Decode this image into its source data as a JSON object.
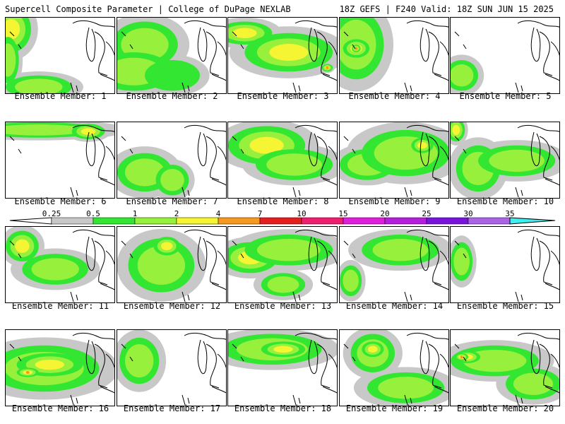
{
  "header": {
    "left_title": "Supercell Composite Parameter | College of DuPage NEXLAB",
    "right_title": "18Z GEFS | F240 Valid: 18Z SUN JUN 15 2025"
  },
  "legend": {
    "ticks": [
      "0.25",
      "0.5",
      "1",
      "2",
      "4",
      "7",
      "10",
      "15",
      "20",
      "25",
      "30",
      "35"
    ],
    "colors": [
      "#c8c8c8",
      "#32e632",
      "#96f03c",
      "#f5f534",
      "#f59a1e",
      "#e61e1e",
      "#f01e6e",
      "#e11edc",
      "#b41edc",
      "#7814dc",
      "#aa64e6",
      "#3cf0f0"
    ]
  },
  "members": [
    {
      "label": "Ensemble Member: 1",
      "blobs": [
        [
          0.05,
          0.15,
          0.18,
          0.3,
          4
        ],
        [
          0.02,
          0.55,
          0.1,
          0.3,
          2
        ],
        [
          0.3,
          0.9,
          0.3,
          0.15,
          2
        ]
      ]
    },
    {
      "label": "Ensemble Member: 2",
      "blobs": [
        [
          0.25,
          0.35,
          0.3,
          0.3,
          2
        ],
        [
          0.15,
          0.7,
          0.35,
          0.25,
          2
        ],
        [
          0.5,
          0.75,
          0.25,
          0.2,
          1
        ]
      ]
    },
    {
      "label": "Ensemble Member: 3",
      "blobs": [
        [
          0.15,
          0.2,
          0.25,
          0.15,
          4
        ],
        [
          0.55,
          0.45,
          0.4,
          0.25,
          4
        ],
        [
          0.9,
          0.65,
          0.05,
          0.05,
          7
        ]
      ]
    },
    {
      "label": "Ensemble Member: 4",
      "blobs": [
        [
          0.15,
          0.35,
          0.25,
          0.45,
          2
        ],
        [
          0.15,
          0.4,
          0.12,
          0.12,
          4
        ],
        [
          0.15,
          0.4,
          0.04,
          0.05,
          10
        ]
      ]
    },
    {
      "label": "Ensemble Member: 5",
      "blobs": [
        [
          0.1,
          0.75,
          0.15,
          0.2,
          2
        ]
      ]
    },
    {
      "label": "Ensemble Member: 6",
      "blobs": [
        [
          0.3,
          0.1,
          0.6,
          0.1,
          2
        ],
        [
          0.75,
          0.12,
          0.15,
          0.1,
          4
        ]
      ]
    },
    {
      "label": "Ensemble Member: 7",
      "blobs": [
        [
          0.25,
          0.65,
          0.25,
          0.25,
          2
        ],
        [
          0.5,
          0.75,
          0.15,
          0.2,
          2
        ]
      ]
    },
    {
      "label": "Ensemble Member: 8",
      "blobs": [
        [
          0.35,
          0.3,
          0.35,
          0.25,
          4
        ],
        [
          0.6,
          0.55,
          0.35,
          0.2,
          2
        ]
      ]
    },
    {
      "label": "Ensemble Member: 9",
      "blobs": [
        [
          0.25,
          0.55,
          0.25,
          0.2,
          2
        ],
        [
          0.6,
          0.4,
          0.4,
          0.3,
          2
        ],
        [
          0.75,
          0.3,
          0.1,
          0.1,
          4
        ]
      ]
    },
    {
      "label": "Ensemble Member: 10",
      "blobs": [
        [
          0.05,
          0.1,
          0.08,
          0.15,
          4
        ],
        [
          0.25,
          0.6,
          0.2,
          0.3,
          2
        ],
        [
          0.6,
          0.5,
          0.35,
          0.2,
          2
        ]
      ]
    },
    {
      "label": "Ensemble Member: 11",
      "blobs": [
        [
          0.15,
          0.25,
          0.15,
          0.2,
          4
        ],
        [
          0.45,
          0.55,
          0.3,
          0.2,
          2
        ]
      ]
    },
    {
      "label": "Ensemble Member: 12",
      "blobs": [
        [
          0.4,
          0.5,
          0.3,
          0.35,
          2
        ],
        [
          0.45,
          0.25,
          0.12,
          0.12,
          4
        ]
      ]
    },
    {
      "label": "Ensemble Member: 13",
      "blobs": [
        [
          0.2,
          0.4,
          0.25,
          0.2,
          4
        ],
        [
          0.55,
          0.3,
          0.4,
          0.2,
          2
        ],
        [
          0.5,
          0.75,
          0.2,
          0.15,
          2
        ]
      ]
    },
    {
      "label": "Ensemble Member: 14",
      "blobs": [
        [
          0.55,
          0.3,
          0.35,
          0.2,
          2
        ],
        [
          0.1,
          0.7,
          0.1,
          0.2,
          2
        ]
      ]
    },
    {
      "label": "Ensemble Member: 15",
      "blobs": [
        [
          0.1,
          0.45,
          0.1,
          0.25,
          2
        ]
      ]
    },
    {
      "label": "Ensemble Member: 16",
      "blobs": [
        [
          0.35,
          0.5,
          0.5,
          0.3,
          2
        ],
        [
          0.4,
          0.45,
          0.3,
          0.15,
          4
        ],
        [
          0.2,
          0.55,
          0.1,
          0.06,
          10
        ]
      ]
    },
    {
      "label": "Ensemble Member: 17",
      "blobs": [
        [
          0.2,
          0.4,
          0.18,
          0.3,
          2
        ]
      ]
    },
    {
      "label": "Ensemble Member: 18",
      "blobs": [
        [
          0.4,
          0.25,
          0.45,
          0.2,
          2
        ],
        [
          0.5,
          0.25,
          0.2,
          0.1,
          4
        ]
      ]
    },
    {
      "label": "Ensemble Member: 19",
      "blobs": [
        [
          0.3,
          0.3,
          0.2,
          0.25,
          2
        ],
        [
          0.3,
          0.25,
          0.1,
          0.1,
          4
        ],
        [
          0.6,
          0.75,
          0.35,
          0.2,
          2
        ]
      ]
    },
    {
      "label": "Ensemble Member: 20",
      "blobs": [
        [
          0.4,
          0.4,
          0.4,
          0.2,
          2
        ],
        [
          0.15,
          0.35,
          0.12,
          0.08,
          4
        ],
        [
          0.1,
          0.35,
          0.06,
          0.05,
          10
        ],
        [
          0.75,
          0.7,
          0.25,
          0.2,
          2
        ]
      ]
    }
  ]
}
